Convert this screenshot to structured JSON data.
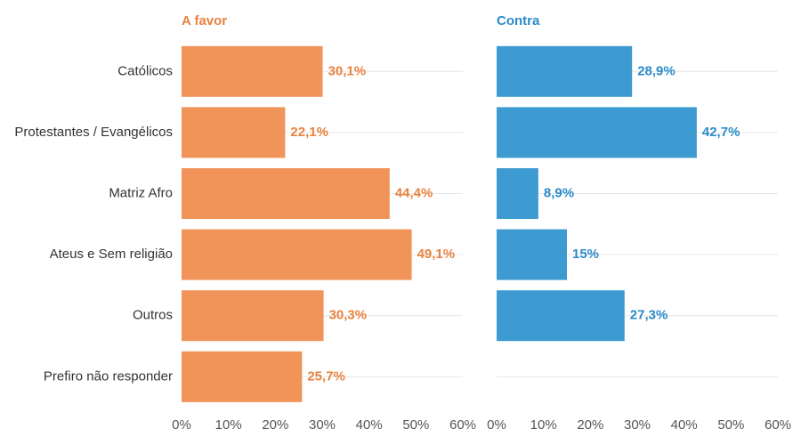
{
  "chart_data": {
    "type": "bar",
    "orientation": "horizontal",
    "categories": [
      "Católicos",
      "Protestantes / Evangélicos",
      "Matriz Afro",
      "Ateus e Sem religião",
      "Outros",
      "Prefiro não responder"
    ],
    "panels": [
      {
        "name": "A favor",
        "color": "#f0945a",
        "values": [
          30.1,
          22.1,
          44.4,
          49.1,
          30.3,
          25.7
        ],
        "labels": [
          "30,1%",
          "22,1%",
          "44,4%",
          "49,1%",
          "30,3%",
          "25,7%"
        ]
      },
      {
        "name": "Contra",
        "color": "#3d9bd1",
        "values": [
          28.9,
          42.7,
          8.9,
          15,
          27.3,
          null
        ],
        "labels": [
          "28,9%",
          "42,7%",
          "8,9%",
          "15%",
          "27,3%",
          ""
        ]
      }
    ],
    "xlim": [
      0,
      60
    ],
    "xticks": [
      0,
      10,
      20,
      30,
      40,
      50,
      60
    ],
    "xtick_labels": [
      "0%",
      "10%",
      "20%",
      "30%",
      "40%",
      "50%",
      "60%"
    ],
    "title": "",
    "xlabel": "",
    "ylabel": "",
    "grid": true,
    "legend": "none"
  },
  "colors": {
    "favor_text": "#e8823f",
    "contra_text": "#2a8bc9"
  }
}
